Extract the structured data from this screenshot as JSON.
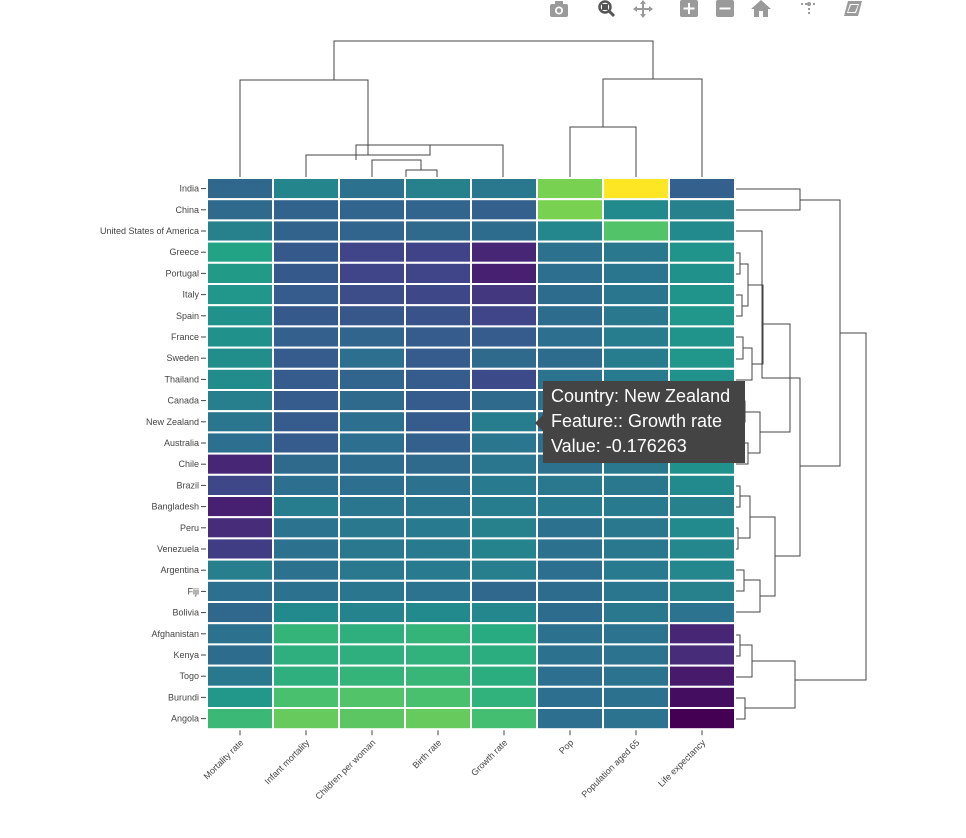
{
  "modebar": {
    "icons": [
      "camera-icon",
      "zoom-icon",
      "pan-icon",
      "zoom-in-icon",
      "zoom-out-icon",
      "home-icon",
      "spike-lines-icon",
      "compare-data-icon"
    ],
    "color": "#888888"
  },
  "tooltip": {
    "line1": "Country: New Zealand",
    "line2": "Feature:: Growth rate",
    "line3": "Value: -0.176263"
  },
  "chart_data": {
    "type": "heatmap",
    "colorscale": "viridis",
    "zlim": [
      -2.5,
      3.0
    ],
    "x": [
      "Mortality rate",
      "Infant mortality",
      "Children per woman",
      "Birth rate",
      "Growth rate",
      "Pop",
      "Population aged 65",
      "Life expectancy"
    ],
    "y": [
      "India",
      "China",
      "United States of America",
      "Greece",
      "Portugal",
      "Italy",
      "Spain",
      "France",
      "Sweden",
      "Thailand",
      "Canada",
      "New Zealand",
      "Australia",
      "Chile",
      "Brazil",
      "Bangladesh",
      "Peru",
      "Venezuela",
      "Argentina",
      "Fiji",
      "Bolivia",
      "Afghanistan",
      "Kenya",
      "Togo",
      "Burundi",
      "Angola"
    ],
    "z": [
      [
        -0.65,
        0.0,
        -0.45,
        -0.1,
        -0.3,
        1.9,
        3.0,
        -0.8
      ],
      [
        -0.6,
        -0.75,
        -0.7,
        -0.7,
        -0.8,
        1.9,
        0.1,
        -0.1
      ],
      [
        -0.1,
        -0.75,
        -0.7,
        -0.6,
        -0.55,
        0.05,
        1.5,
        0.1
      ],
      [
        0.7,
        -0.95,
        -1.35,
        -1.4,
        -1.9,
        -0.45,
        -0.3,
        0.35
      ],
      [
        0.5,
        -0.95,
        -1.35,
        -1.35,
        -2.0,
        -0.5,
        -0.35,
        0.3
      ],
      [
        0.4,
        -0.9,
        -1.2,
        -1.3,
        -1.6,
        -0.55,
        -0.35,
        0.35
      ],
      [
        0.3,
        -0.95,
        -1.0,
        -1.1,
        -1.35,
        -0.55,
        -0.3,
        0.4
      ],
      [
        0.3,
        -0.8,
        -0.7,
        -0.9,
        -0.9,
        -0.5,
        -0.2,
        0.35
      ],
      [
        0.2,
        -0.9,
        -0.5,
        -0.9,
        -0.6,
        -0.55,
        -0.2,
        0.4
      ],
      [
        0.15,
        -0.9,
        -0.7,
        -0.9,
        -1.25,
        -0.4,
        -0.25,
        0.3
      ],
      [
        -0.15,
        -0.9,
        -0.6,
        -0.9,
        -0.6,
        -0.45,
        -0.25,
        0.35
      ],
      [
        -0.35,
        -0.9,
        -0.5,
        -0.9,
        -0.176263,
        -0.5,
        -0.2,
        0.35
      ],
      [
        -0.5,
        -0.9,
        -0.5,
        -0.8,
        -0.35,
        -0.5,
        -0.2,
        0.4
      ],
      [
        -1.9,
        -0.6,
        -0.55,
        -0.6,
        -0.35,
        -0.45,
        -0.3,
        0.3
      ],
      [
        -1.3,
        -0.5,
        -0.5,
        -0.45,
        -0.25,
        -0.3,
        -0.3,
        0.1
      ],
      [
        -2.0,
        -0.2,
        -0.35,
        -0.35,
        -0.2,
        -0.25,
        -0.25,
        -0.1
      ],
      [
        -1.8,
        -0.4,
        -0.3,
        -0.25,
        -0.1,
        -0.45,
        -0.3,
        0.1
      ],
      [
        -1.5,
        -0.45,
        -0.3,
        -0.25,
        -0.05,
        -0.45,
        -0.3,
        0.05
      ],
      [
        -0.15,
        -0.45,
        -0.3,
        -0.25,
        -0.15,
        -0.5,
        -0.25,
        0.05
      ],
      [
        -0.5,
        -0.45,
        -0.35,
        -0.4,
        -0.65,
        -0.55,
        -0.35,
        -0.1
      ],
      [
        -0.65,
        0.1,
        -0.05,
        0.1,
        0.05,
        -0.55,
        -0.3,
        -0.4
      ],
      [
        -0.45,
        1.1,
        1.0,
        1.1,
        0.9,
        -0.45,
        -0.4,
        -1.9
      ],
      [
        -0.55,
        1.0,
        1.0,
        1.05,
        0.95,
        -0.45,
        -0.4,
        -1.8
      ],
      [
        -0.3,
        1.0,
        1.1,
        1.15,
        0.95,
        -0.5,
        -0.4,
        -2.1
      ],
      [
        0.45,
        1.4,
        1.5,
        1.4,
        1.05,
        -0.5,
        -0.45,
        -2.3
      ],
      [
        1.2,
        1.7,
        1.6,
        1.7,
        1.35,
        -0.5,
        -0.4,
        -2.55
      ]
    ]
  }
}
